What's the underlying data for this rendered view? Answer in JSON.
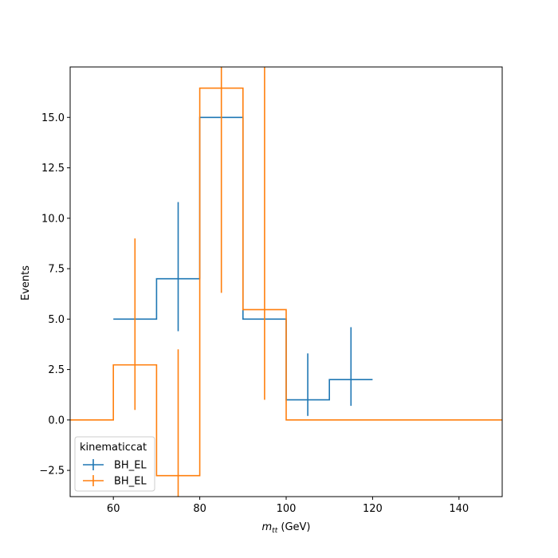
{
  "chart_data": {
    "type": "histogram-step",
    "xlabel": "m_tt (GeV)",
    "xlabel_main": "m",
    "xlabel_sub": "tt",
    "xlabel_unit": " (GeV)",
    "ylabel": "Events",
    "xlim": [
      50,
      150
    ],
    "ylim": [
      -3.8,
      17.5
    ],
    "xticks": [
      60,
      80,
      100,
      120,
      140
    ],
    "xtick_labels": [
      "60",
      "80",
      "100",
      "120",
      "140"
    ],
    "yticks": [
      -2.5,
      0.0,
      2.5,
      5.0,
      7.5,
      10.0,
      12.5,
      15.0
    ],
    "ytick_labels": [
      "−2.5",
      "0.0",
      "2.5",
      "5.0",
      "7.5",
      "10.0",
      "12.5",
      "15.0"
    ],
    "grid": false,
    "legend": {
      "title": "kinematiccat",
      "placement": "lower-left",
      "entries": [
        "BH_EL",
        "BH_EL"
      ]
    },
    "series": [
      {
        "name": "BH_EL",
        "color": "#1f77b4",
        "edges": [
          60,
          70,
          80,
          90,
          100,
          110,
          120
        ],
        "values": [
          5.0,
          7.0,
          15.0,
          5.0,
          1.0,
          2.0
        ],
        "errors": [
          null,
          [
            4.4,
            10.8
          ],
          null,
          null,
          [
            0.2,
            3.3
          ],
          [
            0.7,
            4.6
          ]
        ]
      },
      {
        "name": "BH_EL",
        "color": "#ff7f0e",
        "edges": [
          50,
          60,
          70,
          80,
          90,
          100,
          110,
          120,
          130,
          140,
          150
        ],
        "values": [
          0.0,
          2.73,
          -2.76,
          16.45,
          5.47,
          0.0,
          0.0,
          0.0,
          0.0,
          0.0
        ],
        "errors": [
          null,
          [
            0.5,
            9.0
          ],
          [
            -3.8,
            3.5
          ],
          [
            6.3,
            17.5
          ],
          [
            1.0,
            17.5
          ],
          null,
          null,
          null,
          null,
          null
        ]
      }
    ]
  }
}
